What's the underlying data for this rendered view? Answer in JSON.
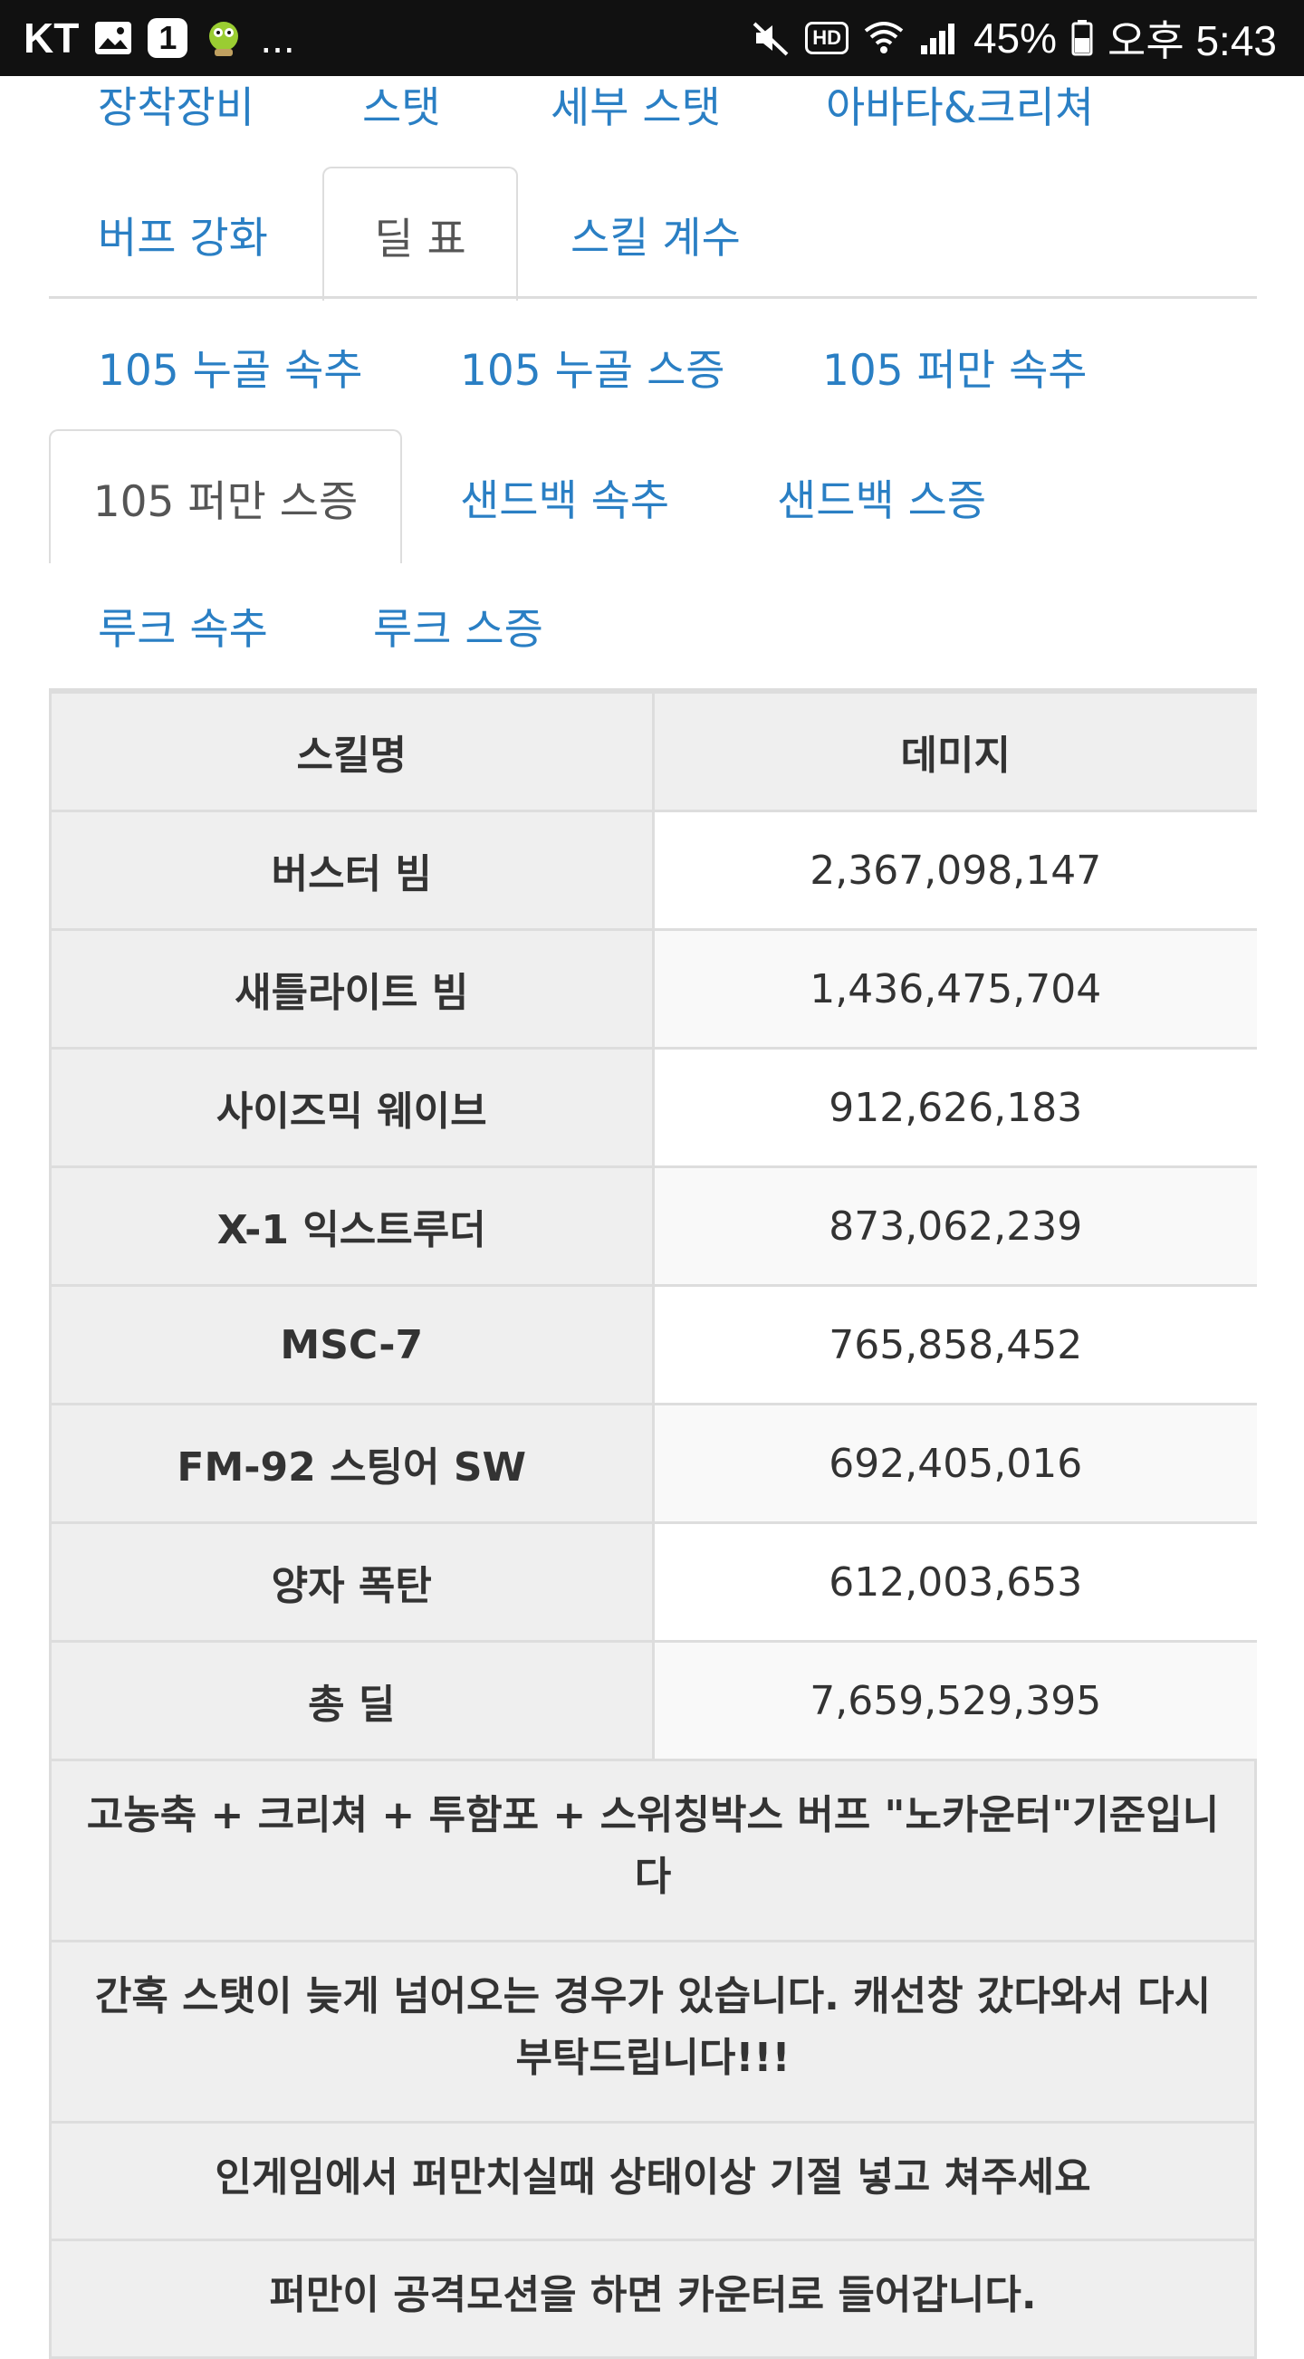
{
  "status_bar": {
    "carrier": "KT",
    "notification_count": "1",
    "more": "...",
    "hd": "HD",
    "battery": "45%",
    "time": "오후 5:43"
  },
  "tabs_row1": [
    "장착장비",
    "스탯",
    "세부 스탯",
    "아바타&크리쳐"
  ],
  "tabs_row2": [
    "버프 강화",
    "딜 표",
    "스킬 계수"
  ],
  "tabs_row2_active": "딜 표",
  "subtabs": [
    "105 누골 속추",
    "105 누골 스증",
    "105 퍼만 속추",
    "105 퍼만 스증",
    "샌드백 속추",
    "샌드백 스증",
    "루크 속추",
    "루크 스증"
  ],
  "subtabs_active": "105 퍼만 스증",
  "table": {
    "headers": [
      "스킬명",
      "데미지"
    ],
    "rows": [
      {
        "skill": "버스터 빔",
        "damage": "2,367,098,147"
      },
      {
        "skill": "새틀라이트 빔",
        "damage": "1,436,475,704"
      },
      {
        "skill": "사이즈믹 웨이브",
        "damage": "912,626,183"
      },
      {
        "skill": "X-1 익스트루더",
        "damage": "873,062,239"
      },
      {
        "skill": "MSC-7",
        "damage": "765,858,452"
      },
      {
        "skill": "FM-92 스팅어 SW",
        "damage": "692,405,016"
      },
      {
        "skill": "양자 폭탄",
        "damage": "612,003,653"
      },
      {
        "skill": "총 딜",
        "damage": "7,659,529,395"
      }
    ]
  },
  "notes": [
    "고농축 + 크리쳐 + 투함포 + 스위칭박스 버프 \"노카운터\"기준입니다",
    "간혹 스탯이 늦게 넘어오는 경우가 있습니다. 캐선창 갔다와서 다시 부탁드립니다!!!",
    "인게임에서 퍼만치실때 상태이상 기절 넣고 쳐주세요",
    "퍼만이 공격모션을 하면 카운터로 들어갑니다."
  ],
  "colors": {
    "link": "#2a7fc4",
    "active_tab_text": "#555555",
    "border": "#dddddd",
    "header_bg": "#efefef"
  }
}
